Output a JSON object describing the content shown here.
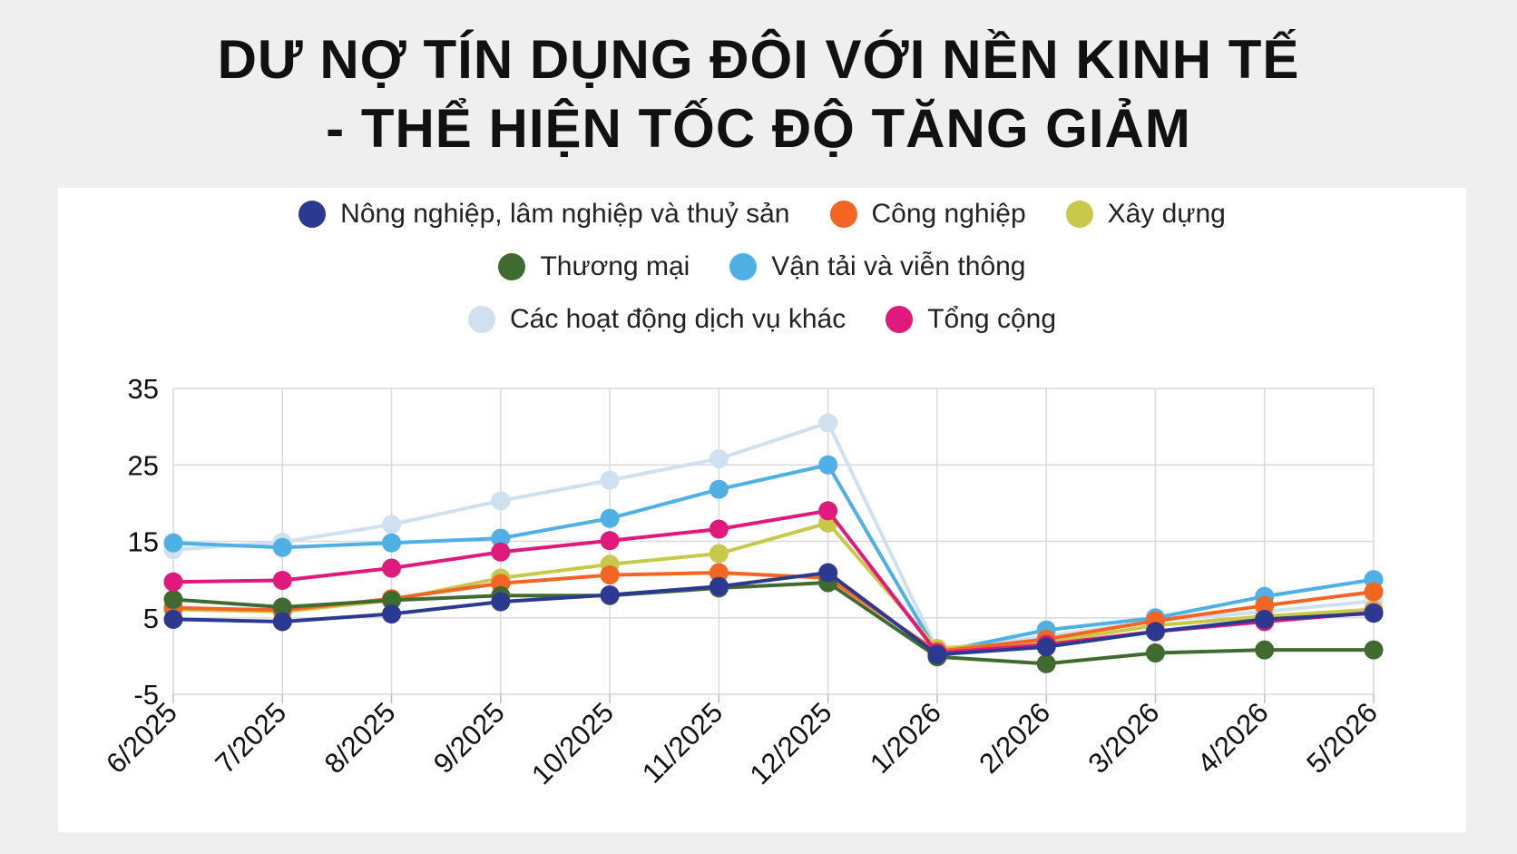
{
  "title_lines": [
    "DƯ NỢ TÍN DỤNG ĐÔI VỚI NỀN KINH TẾ",
    "- THỂ HIỆN TỐC ĐỘ TĂNG GIẢM"
  ],
  "chart_data": {
    "type": "line",
    "title": "DƯ NỢ TÍN DỤNG ĐÔI VỚI NỀN KINH TẾ - THỂ HIỆN TỐC ĐỘ TĂNG GIẢM",
    "xlabel": "",
    "ylabel": "",
    "categories": [
      "6/2025",
      "7/2025",
      "8/2025",
      "9/2025",
      "10/2025",
      "11/2025",
      "12/2025",
      "1/2026",
      "2/2026",
      "3/2026",
      "4/2026",
      "5/2026"
    ],
    "ylim": [
      -5,
      35
    ],
    "yticks": [
      "35",
      "25",
      "15",
      "5",
      "-5"
    ],
    "grid": true,
    "legend_position": "top",
    "series": [
      {
        "name": "Nông nghiệp, lâm nghiệp và thuỷ sản",
        "color": "#2b3990",
        "values": [
          4.8,
          4.5,
          5.5,
          7.1,
          8.0,
          9.1,
          10.9,
          0.2,
          1.2,
          3.2,
          4.8,
          5.6
        ]
      },
      {
        "name": "Công nghiệp",
        "color": "#f26522",
        "values": [
          6.3,
          6.0,
          7.5,
          9.5,
          10.6,
          10.9,
          10.2,
          0.6,
          2.2,
          4.6,
          6.6,
          8.4
        ]
      },
      {
        "name": "Xây dựng",
        "color": "#c8c84a",
        "values": [
          6.1,
          5.8,
          7.3,
          10.2,
          12.0,
          13.4,
          17.4,
          1.0,
          1.8,
          4.0,
          5.2,
          6.1
        ]
      },
      {
        "name": "Thương mại",
        "color": "#3f6b30",
        "values": [
          7.4,
          6.4,
          7.3,
          7.9,
          7.9,
          8.9,
          9.6,
          -0.1,
          -1.0,
          0.4,
          0.8,
          0.8
        ]
      },
      {
        "name": "Vận tải và viễn thông",
        "color": "#4fb0e6",
        "values": [
          14.8,
          14.2,
          14.8,
          15.4,
          18.0,
          21.8,
          25.0,
          0.5,
          3.4,
          5.0,
          7.8,
          10.0
        ]
      },
      {
        "name": "Các hoạt động dịch vụ khác",
        "color": "#cfe0f1",
        "values": [
          13.9,
          14.9,
          17.2,
          20.3,
          23.0,
          25.8,
          30.5,
          0.8,
          2.6,
          4.6,
          5.8,
          7.2
        ]
      },
      {
        "name": "Tổng cộng",
        "color": "#e0197d",
        "values": [
          9.7,
          9.9,
          11.5,
          13.6,
          15.1,
          16.6,
          19.0,
          0.4,
          1.5,
          3.2,
          4.5,
          5.7
        ]
      }
    ]
  }
}
